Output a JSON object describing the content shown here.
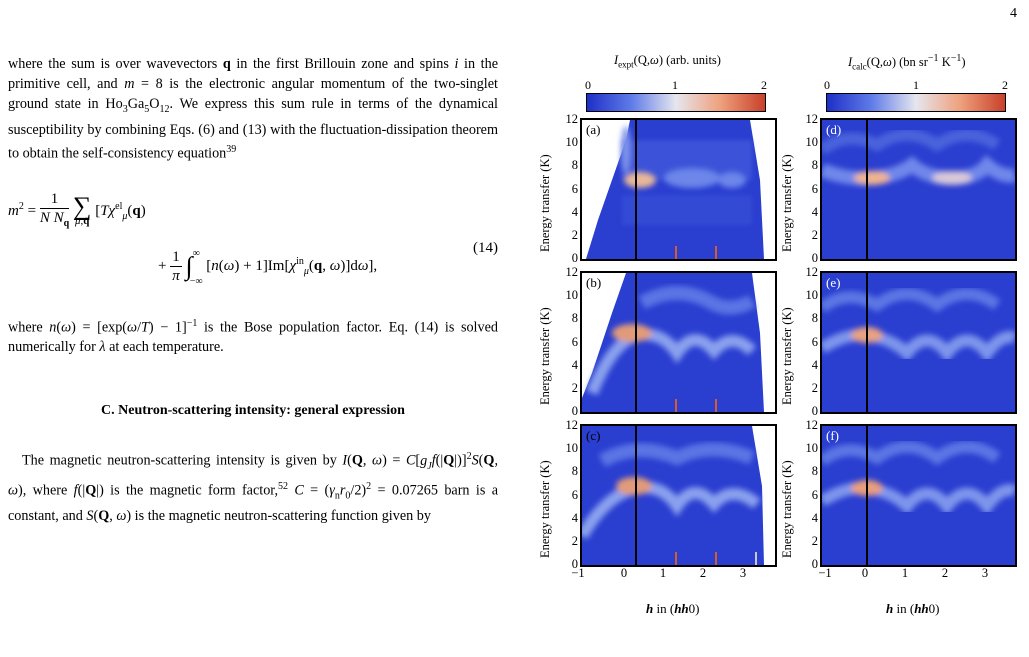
{
  "page_number": "4",
  "text": {
    "para1": "where the sum is over wavevectors q in the first Brillouin zone and spins i in the primitive cell, and m = 8 is the electronic angular momentum of the two-singlet ground state in Ho3Ga5O12. We express this sum rule in terms of the dynamical susceptibility by combining Eqs. (6) and (13) with the fluctuation-dissipation theorem to obtain the self-consistency equation39",
    "eq_number": "(14)",
    "para2": "where n(ω) = [exp(ω/T) − 1]−1 is the Bose population factor. Eq. (14) is solved numerically for λ at each temperature.",
    "section_title": "C.   Neutron-scattering intensity: general expression",
    "para3": "The magnetic neutron-scattering intensity is given by I(Q, ω) = C[gJ f(|Q|)]2 S(Q, ω), where f(|Q|) is the magnetic form factor,52 C = (γn r0/2)2 = 0.07265 barn is a constant, and S(Q, ω) is the magnetic neutron-scattering function given by"
  },
  "figure": {
    "left_colorbar": {
      "label": "Iexpt(Q,ω) (arb. units)",
      "ticks": [
        "0",
        "1",
        "2"
      ]
    },
    "right_colorbar": {
      "label": "Icalc(Q,ω) (bn sr−1 K−1)",
      "ticks": [
        "0",
        "1",
        "2"
      ]
    },
    "panels": [
      {
        "letter": "(a)"
      },
      {
        "letter": "(b)"
      },
      {
        "letter": "(c)"
      },
      {
        "letter": "(d)"
      },
      {
        "letter": "(e)"
      },
      {
        "letter": "(f)"
      }
    ],
    "y_label": "Energy transfer (K)",
    "y_ticks": [
      "0",
      "2",
      "4",
      "6",
      "8",
      "10",
      "12"
    ],
    "x_ticks": [
      "−1",
      "0",
      "1",
      "2",
      "3"
    ],
    "x_label": "h in (hh0)"
  },
  "colors": {
    "cmap_low": "#2b3fd8",
    "cmap_mid": "#e8e8ee",
    "cmap_high": "#d4532a"
  }
}
